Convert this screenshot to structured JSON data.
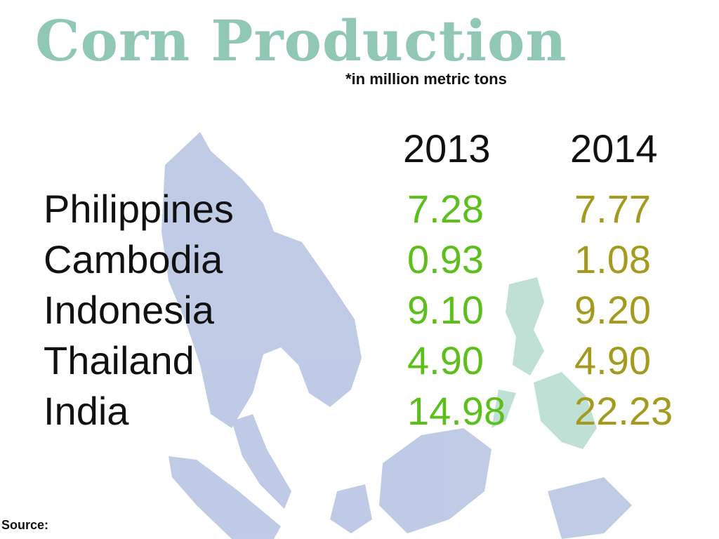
{
  "title": "Corn Production",
  "subtitle": "*in million metric tons",
  "source_label": "Source:",
  "colors": {
    "title": "#91c8b4",
    "value_2013": "#5cbf1c",
    "value_2014": "#a39a1f",
    "map": "#b5c3e2",
    "map_highlight": "#b9ddd0"
  },
  "chart_data": {
    "type": "table",
    "title": "Corn Production",
    "subtitle": "*in million metric tons",
    "columns": [
      "2013",
      "2014"
    ],
    "rows": [
      {
        "country": "Philippines",
        "values": [
          "7.28",
          "7.77"
        ]
      },
      {
        "country": "Cambodia",
        "values": [
          "0.93",
          "1.08"
        ]
      },
      {
        "country": "Indonesia",
        "values": [
          "9.10",
          "9.20"
        ]
      },
      {
        "country": "Thailand",
        "values": [
          "4.90",
          "4.90"
        ]
      },
      {
        "country": "India",
        "values": [
          "14.98",
          "22.23"
        ]
      }
    ]
  }
}
